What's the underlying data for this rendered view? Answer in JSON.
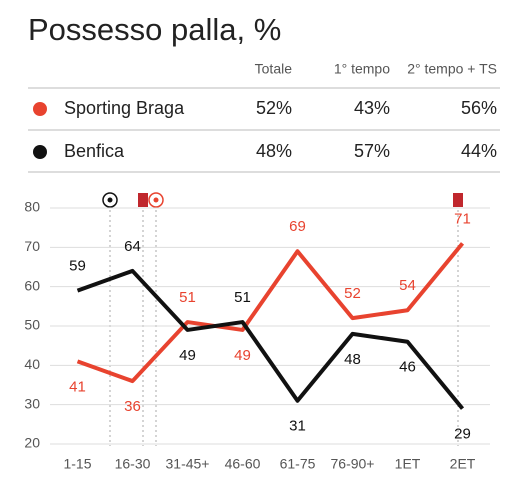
{
  "title": "Possesso palla, %",
  "table": {
    "columns": [
      "Totale",
      "1° tempo",
      "2° tempo + TS"
    ],
    "rows": [
      [
        "52%",
        "43%",
        "56%"
      ],
      [
        "48%",
        "57%",
        "44%"
      ]
    ]
  },
  "chart_data": {
    "type": "line",
    "categories": [
      "1-15",
      "16-30",
      "31-45+",
      "46-60",
      "61-75",
      "76-90+",
      "1ET",
      "2ET"
    ],
    "series": [
      {
        "name": "Sporting Braga",
        "color": "#e8432f",
        "values": [
          41,
          36,
          51,
          49,
          69,
          52,
          54,
          71
        ]
      },
      {
        "name": "Benfica",
        "color": "#111111",
        "values": [
          59,
          64,
          49,
          51,
          31,
          48,
          46,
          29
        ]
      }
    ],
    "ylim": [
      20,
      80
    ],
    "yticks": [
      20,
      30,
      40,
      50,
      60,
      70,
      80
    ],
    "grid": true
  }
}
